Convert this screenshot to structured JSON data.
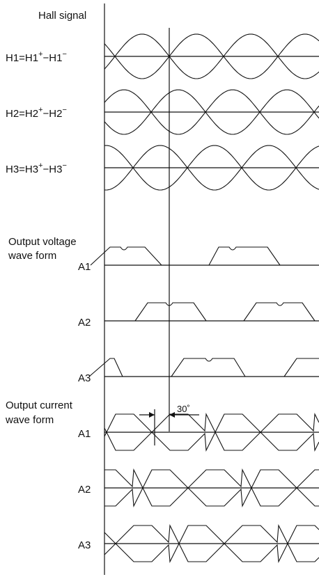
{
  "title": "Hall signal",
  "hall_signals": [
    {
      "id": "H1",
      "label": "H1=H1",
      "minus_part": "−H1",
      "sup_plus": "+",
      "sup_minus": "−"
    },
    {
      "id": "H2",
      "label": "H2=H2",
      "minus_part": "−H2",
      "sup_plus": "+",
      "sup_minus": "−"
    },
    {
      "id": "H3",
      "label": "H3=H3",
      "minus_part": "−H3",
      "sup_plus": "+",
      "sup_minus": "−"
    }
  ],
  "voltage_section": {
    "title_line1": "Output voltage",
    "title_line2": "wave form",
    "channels": [
      "A1",
      "A2",
      "A3"
    ]
  },
  "current_section": {
    "title_line1": "Output current",
    "title_line2": "wave form",
    "channels": [
      "A1",
      "A2",
      "A3"
    ]
  },
  "phase_annotation": "30˚"
}
